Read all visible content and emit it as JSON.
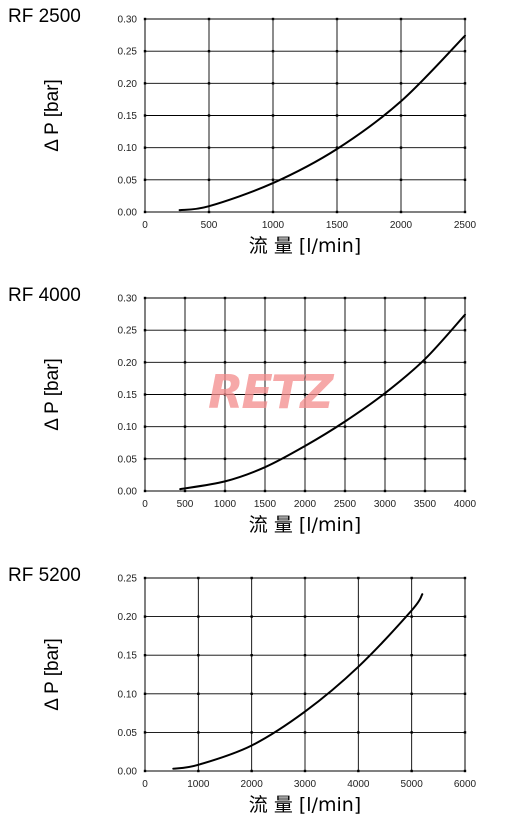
{
  "watermark": "RETZ",
  "chart_data": [
    {
      "type": "line",
      "title": "RF 2500",
      "xlabel": "流 量 [l/min]",
      "ylabel": "Δ P [bar]",
      "xlim": [
        0,
        2500
      ],
      "ylim": [
        0,
        0.3
      ],
      "xticks": [
        0,
        500,
        1000,
        1500,
        2000,
        2500
      ],
      "yticks": [
        0.0,
        0.05,
        0.1,
        0.15,
        0.2,
        0.25,
        0.3
      ],
      "xtick_labels": [
        "0",
        "500",
        "1000",
        "1500",
        "2000",
        "2500"
      ],
      "ytick_labels": [
        "0.00",
        "0.05",
        "0.10",
        "0.15",
        "0.20",
        "0.25",
        "0.30"
      ],
      "grid": true,
      "x": [
        270,
        500,
        1000,
        1500,
        2000,
        2500
      ],
      "y": [
        0.003,
        0.009,
        0.045,
        0.098,
        0.172,
        0.274
      ]
    },
    {
      "type": "line",
      "title": "RF 4000",
      "xlabel": "流 量 [l/min]",
      "ylabel": "Δ P [bar]",
      "xlim": [
        0,
        4000
      ],
      "ylim": [
        0,
        0.3
      ],
      "xticks": [
        0,
        500,
        1000,
        1500,
        2000,
        2500,
        3000,
        3500,
        4000
      ],
      "yticks": [
        0.0,
        0.05,
        0.1,
        0.15,
        0.2,
        0.25,
        0.3
      ],
      "xtick_labels": [
        "0",
        "500",
        "1000",
        "1500",
        "2000",
        "2500",
        "3000",
        "3500",
        "4000"
      ],
      "ytick_labels": [
        "0.00",
        "0.05",
        "0.10",
        "0.15",
        "0.20",
        "0.25",
        "0.30"
      ],
      "grid": true,
      "x": [
        440,
        1000,
        1500,
        2000,
        2500,
        3000,
        3500,
        4000
      ],
      "y": [
        0.003,
        0.015,
        0.037,
        0.07,
        0.108,
        0.152,
        0.205,
        0.274
      ]
    },
    {
      "type": "line",
      "title": "RF 5200",
      "xlabel": "流 量 [l/min]",
      "ylabel": "Δ P [bar]",
      "xlim": [
        0,
        6000
      ],
      "ylim": [
        0,
        0.25
      ],
      "xticks": [
        0,
        1000,
        2000,
        3000,
        4000,
        5000,
        6000
      ],
      "yticks": [
        0.0,
        0.05,
        0.1,
        0.15,
        0.2,
        0.25
      ],
      "xtick_labels": [
        "0",
        "1000",
        "2000",
        "3000",
        "4000",
        "5000",
        "6000"
      ],
      "ytick_labels": [
        "0.00",
        "0.05",
        "0.10",
        "0.15",
        "0.20",
        "0.25"
      ],
      "grid": true,
      "x": [
        530,
        1000,
        2000,
        3000,
        4000,
        5000,
        5200
      ],
      "y": [
        0.003,
        0.008,
        0.033,
        0.077,
        0.135,
        0.208,
        0.229
      ]
    }
  ]
}
